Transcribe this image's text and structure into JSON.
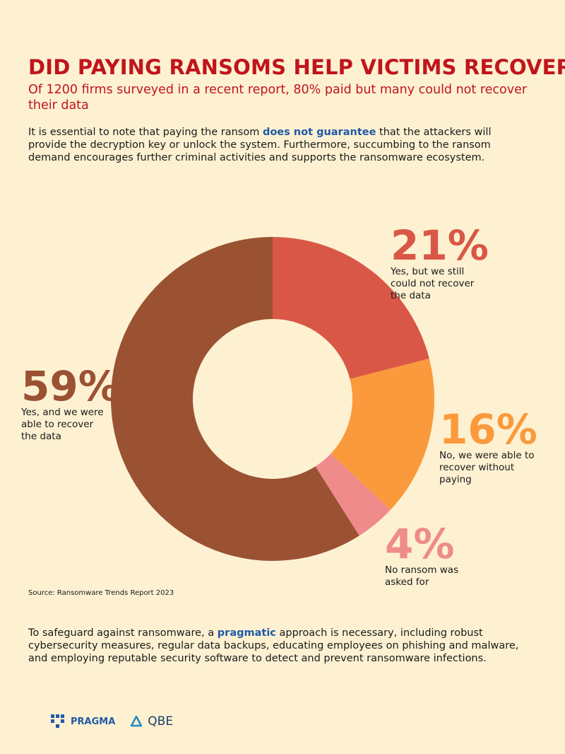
{
  "title": "DID PAYING RANSOMS HELP VICTIMS RECOVER?",
  "subtitle": "Of 1200 firms surveyed in a recent report, 80% paid but many could not recover their data",
  "intro": [
    "It is essential to note that paying the ransom ",
    "does not guarantee",
    " that the attackers will provide the decryption key or unlock the system. Furthermore, succumbing to the ransom demand encourages further criminal activities and supports the ransomware ecosystem."
  ],
  "chart_data": {
    "type": "donut",
    "categories": [
      "Yes, but we still could not recover the data",
      "No, we were able to recover without paying",
      "No ransom was asked for",
      "Yes, and we were able to recover the data"
    ],
    "values": [
      21,
      16,
      4,
      59
    ],
    "value_labels": [
      "21%",
      "16%",
      "4%",
      "59%"
    ],
    "colors": [
      "#d95747",
      "#fb9a3c",
      "#ef8b8a",
      "#9a5233"
    ],
    "source": "Source: Ransomware Trends Report 2023"
  },
  "outro": [
    "To safeguard against ransomware, a ",
    "pragmatic",
    " approach is necessary, including robust cybersecurity measures, regular data backups, educating employees on phishing and malware, and employing reputable security software to detect and prevent ransomware infections."
  ],
  "logos": [
    "PRAGMA",
    "QBE"
  ]
}
